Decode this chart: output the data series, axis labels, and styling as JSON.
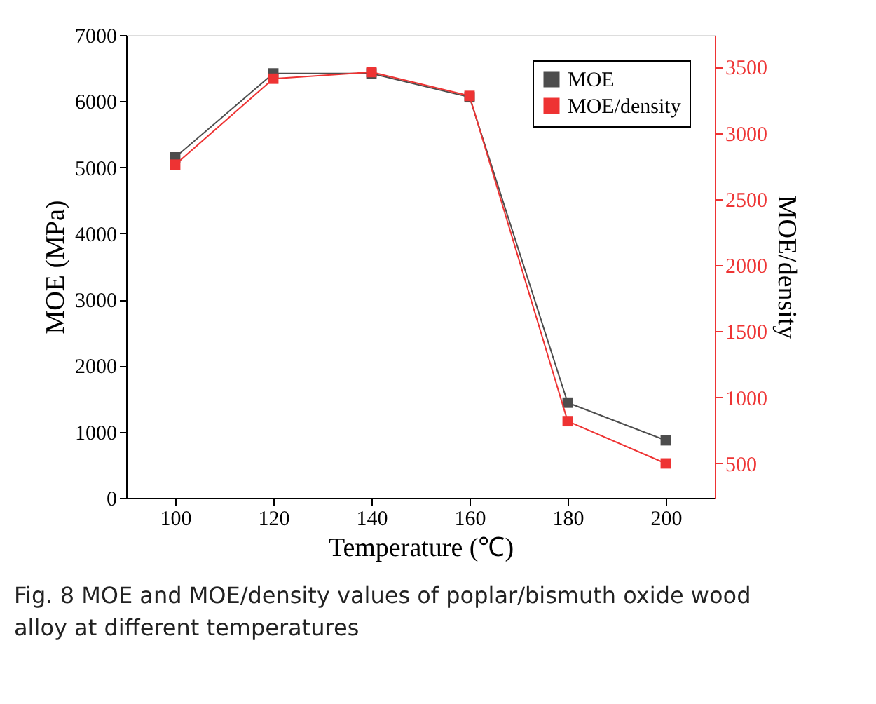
{
  "chart_data": {
    "type": "line",
    "xlabel": "Temperature (℃)",
    "ylabel": "MOE (MPa)",
    "y2label": "MOE/density",
    "x": [
      100,
      120,
      140,
      160,
      180,
      200
    ],
    "series": [
      {
        "name": "MOE",
        "color": "#4d4d4d",
        "values": [
          5150,
          6420,
          6420,
          6060,
          1440,
          870
        ]
      },
      {
        "name": "MOE/density",
        "color": "#ee3333",
        "axis": "y2",
        "values": [
          2760,
          3410,
          3460,
          3280,
          820,
          500
        ]
      }
    ],
    "xlim": [
      90,
      210
    ],
    "xticks": [
      100,
      120,
      140,
      160,
      180,
      200
    ],
    "ylim": [
      0,
      7000
    ],
    "yticks": [
      0,
      1000,
      2000,
      3000,
      4000,
      5000,
      6000,
      7000
    ],
    "y2lim": [
      240,
      3740
    ],
    "y2ticks": [
      500,
      1000,
      1500,
      2000,
      2500,
      3000,
      3500
    ],
    "marker": "square",
    "line_style": "solid",
    "grid": false,
    "legend": "top right",
    "annotations": [
      "Fig. 8  MOE and MOE/density values of poplar/bismuth oxide wood alloy at different temperatures"
    ]
  }
}
